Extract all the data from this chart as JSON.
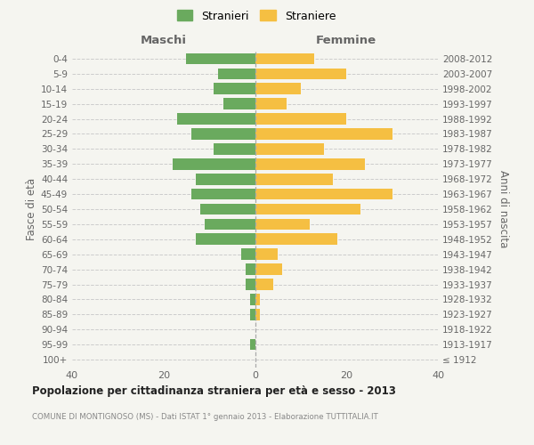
{
  "age_groups": [
    "100+",
    "95-99",
    "90-94",
    "85-89",
    "80-84",
    "75-79",
    "70-74",
    "65-69",
    "60-64",
    "55-59",
    "50-54",
    "45-49",
    "40-44",
    "35-39",
    "30-34",
    "25-29",
    "20-24",
    "15-19",
    "10-14",
    "5-9",
    "0-4"
  ],
  "birth_years": [
    "≤ 1912",
    "1913-1917",
    "1918-1922",
    "1923-1927",
    "1928-1932",
    "1933-1937",
    "1938-1942",
    "1943-1947",
    "1948-1952",
    "1953-1957",
    "1958-1962",
    "1963-1967",
    "1968-1972",
    "1973-1977",
    "1978-1982",
    "1983-1987",
    "1988-1992",
    "1993-1997",
    "1998-2002",
    "2003-2007",
    "2008-2012"
  ],
  "maschi": [
    0,
    1,
    0,
    1,
    1,
    2,
    2,
    3,
    13,
    11,
    12,
    14,
    13,
    18,
    9,
    14,
    17,
    7,
    9,
    8,
    15
  ],
  "femmine": [
    0,
    0,
    0,
    1,
    1,
    4,
    6,
    5,
    18,
    12,
    23,
    30,
    17,
    24,
    15,
    30,
    20,
    7,
    10,
    20,
    13
  ],
  "color_maschi": "#6aaa5e",
  "color_femmine": "#f5bf42",
  "title": "Popolazione per cittadinanza straniera per età e sesso - 2013",
  "subtitle": "COMUNE DI MONTIGNOSO (MS) - Dati ISTAT 1° gennaio 2013 - Elaborazione TUTTITALIA.IT",
  "xlabel_left": "Maschi",
  "xlabel_right": "Femmine",
  "ylabel_left": "Fasce di età",
  "ylabel_right": "Anni di nascita",
  "legend_maschi": "Stranieri",
  "legend_femmine": "Straniere",
  "xlim": 40,
  "background_color": "#f5f5f0",
  "grid_color": "#cccccc",
  "text_color": "#666666",
  "title_color": "#222222",
  "subtitle_color": "#888888"
}
